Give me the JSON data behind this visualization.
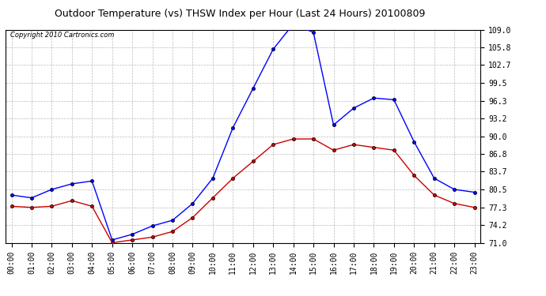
{
  "title": "Outdoor Temperature (vs) THSW Index per Hour (Last 24 Hours) 20100809",
  "copyright": "Copyright 2010 Cartronics.com",
  "hours": [
    0,
    1,
    2,
    3,
    4,
    5,
    6,
    7,
    8,
    9,
    10,
    11,
    12,
    13,
    14,
    15,
    16,
    17,
    18,
    19,
    20,
    21,
    22,
    23
  ],
  "hour_labels": [
    "00:00",
    "01:00",
    "02:00",
    "03:00",
    "04:00",
    "05:00",
    "06:00",
    "07:00",
    "08:00",
    "09:00",
    "10:00",
    "11:00",
    "12:00",
    "13:00",
    "14:00",
    "15:00",
    "16:00",
    "17:00",
    "18:00",
    "19:00",
    "20:00",
    "21:00",
    "22:00",
    "23:00"
  ],
  "blue_data": [
    79.5,
    79.0,
    80.5,
    81.5,
    82.0,
    71.5,
    72.5,
    74.0,
    75.0,
    78.0,
    82.5,
    91.5,
    98.5,
    105.5,
    110.0,
    108.5,
    92.0,
    95.0,
    96.8,
    96.5,
    89.0,
    82.5,
    80.5,
    80.0
  ],
  "red_data": [
    77.5,
    77.3,
    77.5,
    78.5,
    77.5,
    71.0,
    71.5,
    72.0,
    73.0,
    75.5,
    79.0,
    82.5,
    85.5,
    88.5,
    89.5,
    89.5,
    87.5,
    88.5,
    88.0,
    87.5,
    83.0,
    79.5,
    78.0,
    77.3
  ],
  "blue_color": "#0000FF",
  "red_color": "#CC0000",
  "bg_color": "#FFFFFF",
  "plot_bg_color": "#FFFFFF",
  "grid_color": "#BBBBBB",
  "ylim": [
    71.0,
    109.0
  ],
  "yticks": [
    71.0,
    74.2,
    77.3,
    80.5,
    83.7,
    86.8,
    90.0,
    93.2,
    96.3,
    99.5,
    102.7,
    105.8,
    109.0
  ],
  "title_fontsize": 9,
  "copyright_fontsize": 6,
  "tick_fontsize": 7,
  "marker_size": 3
}
